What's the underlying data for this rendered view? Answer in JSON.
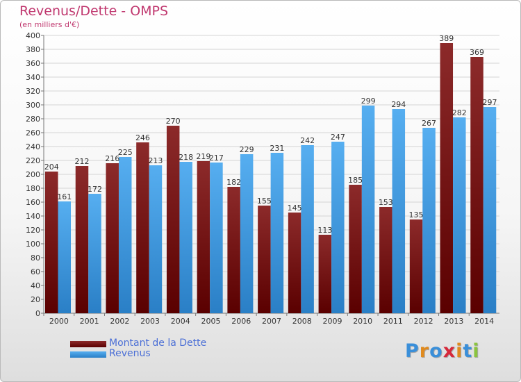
{
  "title": "Revenus/Dette - OMPS",
  "subtitle": "(en milliers d'€)",
  "logo": {
    "letters": [
      "P",
      "r",
      "o",
      "x",
      "i",
      "t",
      "i"
    ]
  },
  "colors": {
    "title": "#c0386f",
    "debt_top": "#8c2a2a",
    "debt_bottom": "#5a0000",
    "revenue_top": "#56aef0",
    "revenue_bottom": "#2a7fc6",
    "legend_text": "#4b6fd6",
    "logo": [
      "#3a8fd9",
      "#e08a1e",
      "#3a8fd9",
      "#d6283a",
      "#e08a1e",
      "#3a8fd9",
      "#8bc43f"
    ]
  },
  "legend": [
    {
      "label": "Montant de la Dette",
      "color": "#6e1515"
    },
    {
      "label": "Revenus",
      "color": "#3d9be6"
    }
  ],
  "chart_data": {
    "type": "bar",
    "categories": [
      "2000",
      "2001",
      "2002",
      "2003",
      "2004",
      "2005",
      "2006",
      "2007",
      "2008",
      "2009",
      "2010",
      "2011",
      "2012",
      "2013",
      "2014"
    ],
    "series": [
      {
        "name": "Montant de la Dette",
        "values": [
          204,
          212,
          216,
          246,
          270,
          219,
          182,
          155,
          145,
          113,
          185,
          153,
          135,
          389,
          369
        ]
      },
      {
        "name": "Revenus",
        "values": [
          161,
          172,
          225,
          213,
          218,
          217,
          229,
          231,
          242,
          247,
          299,
          294,
          267,
          282,
          297
        ]
      }
    ],
    "ylim": [
      0,
      400
    ],
    "yticks": [
      0,
      20,
      40,
      60,
      80,
      100,
      120,
      140,
      160,
      180,
      200,
      220,
      240,
      260,
      280,
      300,
      320,
      340,
      360,
      380,
      400
    ],
    "grid": true,
    "legend_position": "bottom-left"
  }
}
